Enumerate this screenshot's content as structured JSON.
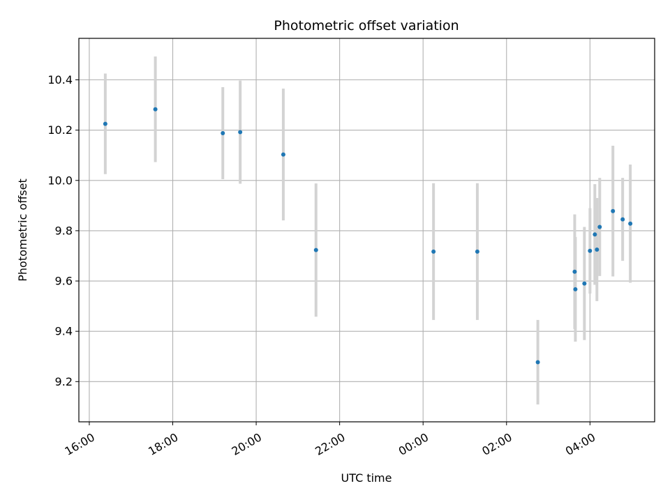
{
  "chart_data": {
    "type": "scatter",
    "title": "Photometric offset variation",
    "xlabel": "UTC time",
    "ylabel": "Photometric offset",
    "x_tick_labels": [
      "16:00",
      "18:00",
      "20:00",
      "22:00",
      "00:00",
      "02:00",
      "04:00"
    ],
    "x_ticks_hours": [
      0,
      2,
      4,
      6,
      8,
      10,
      12
    ],
    "xlim_hours": [
      -0.25,
      13.55
    ],
    "y_ticks": [
      9.2,
      9.4,
      9.6,
      9.8,
      10.0,
      10.2,
      10.4
    ],
    "ylim": [
      9.04,
      10.565
    ],
    "grid": true,
    "colors": {
      "point": "#1f77b4",
      "errorbar": "#d3d3d3",
      "grid": "#b0b0b0"
    },
    "points": [
      {
        "time": "16:23",
        "y": 10.225,
        "err": 0.2
      },
      {
        "time": "17:35",
        "y": 10.283,
        "err": 0.21
      },
      {
        "time": "19:12",
        "y": 10.188,
        "err": 0.183
      },
      {
        "time": "19:37",
        "y": 10.192,
        "err": 0.205
      },
      {
        "time": "20:39",
        "y": 10.103,
        "err": 0.262
      },
      {
        "time": "21:26",
        "y": 9.723,
        "err": 0.265
      },
      {
        "time": "00:15",
        "y": 9.717,
        "err": 0.272
      },
      {
        "time": "01:18",
        "y": 9.717,
        "err": 0.272
      },
      {
        "time": "02:45",
        "y": 9.277,
        "err": 0.168
      },
      {
        "time": "03:38",
        "y": 9.637,
        "err": 0.228
      },
      {
        "time": "03:39",
        "y": 9.567,
        "err": 0.208
      },
      {
        "time": "03:52",
        "y": 9.59,
        "err": 0.225
      },
      {
        "time": "04:00",
        "y": 9.72,
        "err": 0.17
      },
      {
        "time": "04:07",
        "y": 9.785,
        "err": 0.2
      },
      {
        "time": "04:10",
        "y": 9.725,
        "err": 0.205
      },
      {
        "time": "04:14",
        "y": 9.815,
        "err": 0.195
      },
      {
        "time": "04:33",
        "y": 9.878,
        "err": 0.26
      },
      {
        "time": "04:47",
        "y": 9.845,
        "err": 0.165
      },
      {
        "time": "04:58",
        "y": 9.828,
        "err": 0.235
      }
    ]
  }
}
